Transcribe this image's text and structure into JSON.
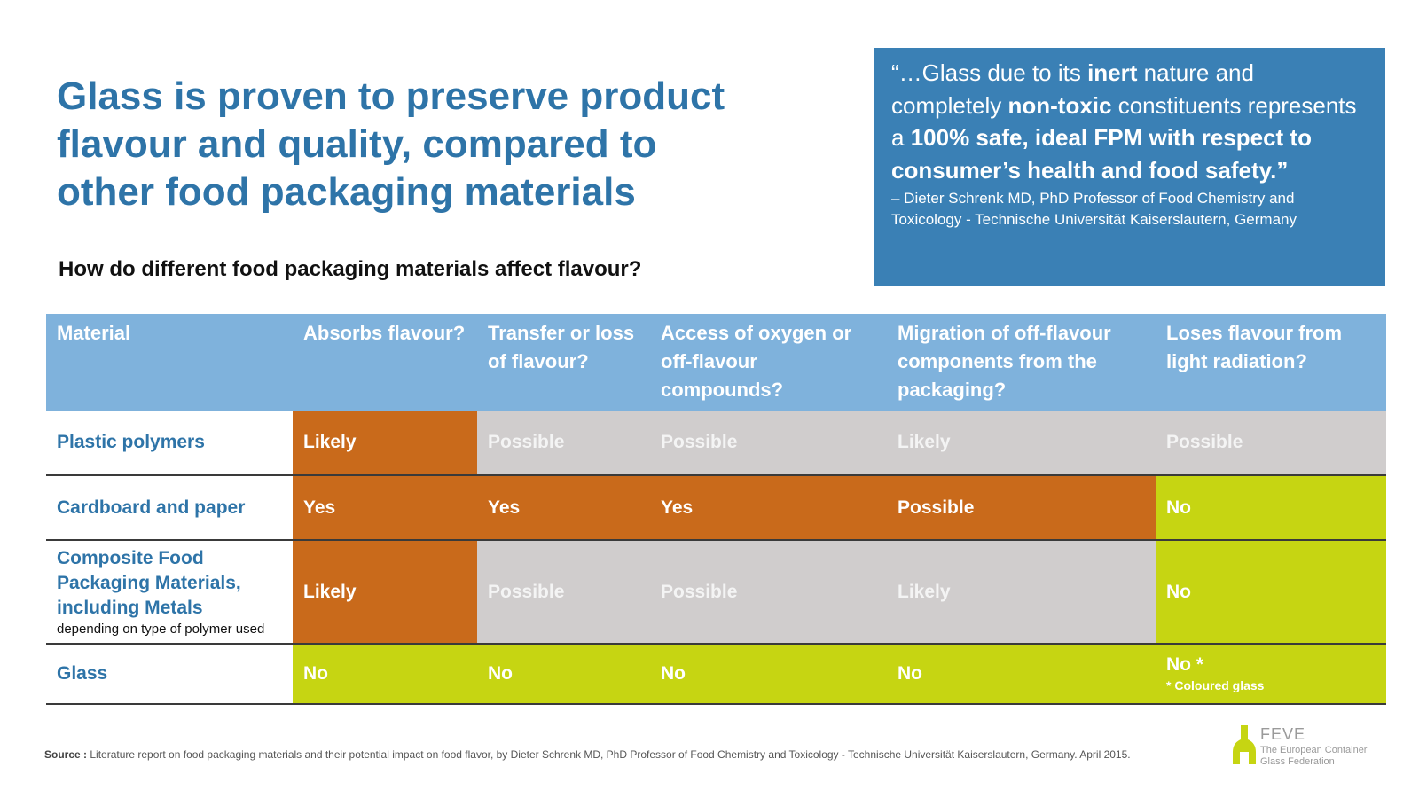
{
  "title": {
    "line1": "Glass is proven to preserve product",
    "line2": "flavour and quality, compared to",
    "line3": "other food packaging materials"
  },
  "subtitle": "How do different food packaging materials affect flavour?",
  "quote": {
    "seg1": "“…Glass due to its ",
    "b1": "inert",
    "seg2": " nature and completely ",
    "b2": "non-toxic",
    "seg3": " constituents represents a ",
    "b3": "100% safe, ideal FPM with respect to consumer’s health and food safety.”",
    "attribution_line1": "– Dieter Schrenk MD, PhD Professor of Food Chemistry and",
    "attribution_line2": "Toxicology  - Technische Universität Kaiserslautern, Germany"
  },
  "table": {
    "headers": [
      "Material",
      "Absorbs flavour?",
      "Transfer or loss of flavour?",
      "Access of oxygen or off-flavour compounds?",
      "Migration of off-flavour components from the packaging?",
      "Loses flavour from light radiation?"
    ],
    "rows": [
      {
        "material": "Plastic polymers",
        "note": "",
        "values": [
          "Likely",
          "Possible",
          "Possible",
          "Likely",
          "Possible"
        ],
        "value_note": ""
      },
      {
        "material": "Cardboard and paper",
        "note": "",
        "values": [
          "Yes",
          "Yes",
          "Yes",
          "Possible",
          "No"
        ],
        "value_note": ""
      },
      {
        "material": "Composite Food Packaging Materials, including Metals",
        "note": "depending on type of polymer used",
        "values": [
          "Likely",
          "Possible",
          "Possible",
          "Likely",
          "No"
        ],
        "value_note": ""
      },
      {
        "material": "Glass",
        "note": "",
        "values": [
          "No",
          "No",
          "No",
          "No",
          "No *"
        ],
        "value_note": "* Coloured glass"
      }
    ]
  },
  "source": {
    "label": "Source :",
    "text": " Literature report on food packaging materials and their potential impact on food flavor, by Dieter Schrenk MD, PhD Professor of Food Chemistry and Toxicology - Technische Universität Kaiserslautern, Germany. April 2015."
  },
  "logo": {
    "name": "FEVE",
    "sub_line1": "The European Container",
    "sub_line2": "Glass Federation"
  },
  "colors": {
    "title_blue": "#2e74a8",
    "quote_bg": "#3a80b5",
    "header_bg": "#7fb2dc",
    "orange": "#c96a1b",
    "gray": "#d0cdcd",
    "green": "#c6d512"
  }
}
